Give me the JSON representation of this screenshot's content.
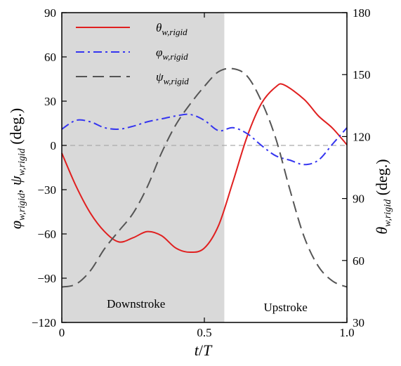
{
  "chart_data": {
    "type": "line",
    "xlabel": "t/T",
    "ylabel_left": "φw,rigid, ψw,rigid (deg.)",
    "ylabel_right": "θw,rigid (deg.)",
    "xlim": [
      0,
      1.0
    ],
    "ylim_left": [
      -120,
      90
    ],
    "ylim_right": [
      30,
      180
    ],
    "xticks": [
      "0",
      "0.5",
      "1.0"
    ],
    "yticks_left": [
      "90",
      "60",
      "30",
      "0",
      "−30",
      "−60",
      "−90",
      "−120"
    ],
    "yticks_right": [
      "180",
      "150",
      "120",
      "90",
      "60",
      "30"
    ],
    "grid": false,
    "legend_placement": "top-left",
    "regions": [
      {
        "label": "Downstroke",
        "x_start": 0,
        "x_end": 0.57,
        "color": "#d9d9d9"
      },
      {
        "label": "Upstroke",
        "x_start": 0.57,
        "x_end": 1.0,
        "color": "#ffffff"
      }
    ],
    "reference_line": {
      "y": 0,
      "axis": "left",
      "color": "#aaaaaa",
      "style": "dashed"
    },
    "series": [
      {
        "name": "θw,rigid",
        "axis": "right",
        "color": "#e02020",
        "style": "solid",
        "x": [
          0,
          0.05,
          0.1,
          0.15,
          0.2,
          0.25,
          0.3,
          0.35,
          0.4,
          0.45,
          0.5,
          0.55,
          0.6,
          0.65,
          0.7,
          0.75,
          0.78,
          0.85,
          0.9,
          0.95,
          1.0
        ],
        "y": [
          112,
          96,
          83,
          74,
          69,
          71,
          74,
          72,
          66,
          64,
          66,
          77,
          98,
          120,
          136,
          144,
          145,
          138,
          130,
          124,
          116
        ]
      },
      {
        "name": "φw,rigid",
        "axis": "left",
        "color": "#3535f0",
        "style": "dashdot",
        "x": [
          0,
          0.05,
          0.1,
          0.15,
          0.2,
          0.25,
          0.3,
          0.35,
          0.4,
          0.45,
          0.5,
          0.55,
          0.6,
          0.65,
          0.7,
          0.75,
          0.8,
          0.85,
          0.9,
          0.95,
          1.0
        ],
        "y": [
          11,
          17,
          16,
          12,
          11,
          13,
          16,
          18,
          20,
          21,
          17,
          10,
          12,
          8,
          0,
          -7,
          -10,
          -13,
          -10,
          1,
          12
        ]
      },
      {
        "name": "ψw,rigid",
        "axis": "left",
        "color": "#555555",
        "style": "dashed",
        "x": [
          0,
          0.05,
          0.1,
          0.15,
          0.2,
          0.25,
          0.3,
          0.35,
          0.4,
          0.45,
          0.5,
          0.55,
          0.6,
          0.65,
          0.7,
          0.75,
          0.8,
          0.85,
          0.9,
          0.95,
          1.0
        ],
        "y": [
          -96,
          -94,
          -85,
          -70,
          -58,
          -46,
          -28,
          -5,
          14,
          28,
          40,
          50,
          52,
          47,
          30,
          5,
          -30,
          -62,
          -82,
          -92,
          -96
        ]
      }
    ],
    "legend": [
      {
        "label": "θw,rigid",
        "base": "θ",
        "sub": "w,rigid",
        "color": "#e02020",
        "style": "solid"
      },
      {
        "label": "φw,rigid",
        "base": "φ",
        "sub": "w,rigid",
        "color": "#3535f0",
        "style": "dashdot"
      },
      {
        "label": "ψw,rigid",
        "base": "ψ",
        "sub": "w,rigid",
        "color": "#555555",
        "style": "dashed"
      }
    ]
  }
}
